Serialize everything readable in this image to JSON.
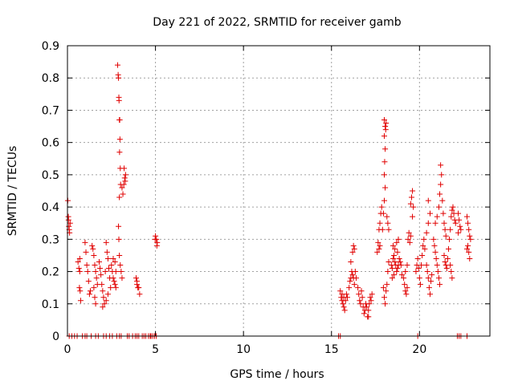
{
  "chart_data": {
    "type": "scatter",
    "title": "Day 221 of 2022, SRMTID for receiver gamb",
    "xlabel": "GPS time / hours",
    "ylabel": "SRMTID / TECUs",
    "xlim": [
      0,
      24
    ],
    "ylim": [
      0,
      0.9
    ],
    "xticks": [
      0,
      5,
      10,
      15,
      20
    ],
    "xtick_labels": [
      "0",
      "5",
      "10",
      "15",
      "20"
    ],
    "yticks": [
      0,
      0.1,
      0.2,
      0.3,
      0.4,
      0.5,
      0.6,
      0.7,
      0.8,
      0.9
    ],
    "ytick_labels": [
      "0",
      "0.1",
      "0.2",
      "0.3",
      "0.4",
      "0.5",
      "0.6",
      "0.7",
      "0.8",
      "0.9"
    ],
    "grid": true,
    "marker": "+",
    "color": "#e00000",
    "series": [
      {
        "name": "SRMTID",
        "points": [
          [
            0.02,
            0.42
          ],
          [
            0.05,
            0.37
          ],
          [
            0.08,
            0.34
          ],
          [
            0.1,
            0.33
          ],
          [
            0.12,
            0.32
          ],
          [
            0.06,
            0.36
          ],
          [
            0.15,
            0.35
          ],
          [
            0.6,
            0.23
          ],
          [
            0.65,
            0.21
          ],
          [
            0.7,
            0.2
          ],
          [
            0.68,
            0.15
          ],
          [
            0.72,
            0.14
          ],
          [
            0.75,
            0.11
          ],
          [
            0.7,
            0.24
          ],
          [
            1.0,
            0.29
          ],
          [
            1.05,
            0.26
          ],
          [
            1.1,
            0.22
          ],
          [
            1.15,
            0.2
          ],
          [
            1.2,
            0.17
          ],
          [
            1.25,
            0.13
          ],
          [
            1.3,
            0.14
          ],
          [
            1.4,
            0.28
          ],
          [
            1.45,
            0.27
          ],
          [
            1.5,
            0.25
          ],
          [
            1.55,
            0.22
          ],
          [
            1.6,
            0.2
          ],
          [
            1.65,
            0.18
          ],
          [
            1.5,
            0.15
          ],
          [
            1.55,
            0.12
          ],
          [
            1.6,
            0.1
          ],
          [
            1.7,
            0.16
          ],
          [
            1.8,
            0.23
          ],
          [
            1.85,
            0.21
          ],
          [
            1.9,
            0.19
          ],
          [
            1.95,
            0.16
          ],
          [
            2.0,
            0.14
          ],
          [
            2.05,
            0.12
          ],
          [
            2.1,
            0.1
          ],
          [
            2.0,
            0.09
          ],
          [
            2.15,
            0.2
          ],
          [
            2.2,
            0.29
          ],
          [
            2.25,
            0.26
          ],
          [
            2.3,
            0.24
          ],
          [
            2.35,
            0.21
          ],
          [
            2.4,
            0.18
          ],
          [
            2.45,
            0.15
          ],
          [
            2.2,
            0.11
          ],
          [
            2.3,
            0.13
          ],
          [
            2.5,
            0.22
          ],
          [
            2.55,
            0.2
          ],
          [
            2.6,
            0.18
          ],
          [
            2.65,
            0.17
          ],
          [
            2.7,
            0.16
          ],
          [
            2.75,
            0.15
          ],
          [
            2.6,
            0.24
          ],
          [
            2.7,
            0.23
          ],
          [
            2.75,
            0.2
          ],
          [
            2.85,
            0.84
          ],
          [
            2.88,
            0.81
          ],
          [
            2.9,
            0.8
          ],
          [
            2.92,
            0.74
          ],
          [
            2.93,
            0.73
          ],
          [
            2.95,
            0.67
          ],
          [
            2.97,
            0.67
          ],
          [
            2.98,
            0.61
          ],
          [
            2.96,
            0.57
          ],
          [
            3.0,
            0.52
          ],
          [
            3.02,
            0.47
          ],
          [
            2.95,
            0.43
          ],
          [
            2.9,
            0.34
          ],
          [
            2.92,
            0.3
          ],
          [
            2.95,
            0.25
          ],
          [
            3.0,
            0.22
          ],
          [
            3.05,
            0.2
          ],
          [
            3.1,
            0.18
          ],
          [
            3.15,
            0.44
          ],
          [
            3.2,
            0.47
          ],
          [
            3.25,
            0.49
          ],
          [
            3.3,
            0.5
          ],
          [
            3.22,
            0.52
          ],
          [
            3.28,
            0.48
          ],
          [
            3.1,
            0.46
          ],
          [
            3.9,
            0.18
          ],
          [
            3.95,
            0.17
          ],
          [
            4.0,
            0.15
          ],
          [
            4.05,
            0.15
          ],
          [
            4.1,
            0.13
          ],
          [
            3.95,
            0.16
          ],
          [
            5.0,
            0.31
          ],
          [
            5.05,
            0.3
          ],
          [
            5.1,
            0.29
          ],
          [
            5.08,
            0.28
          ],
          [
            4.98,
            0.3
          ],
          [
            15.5,
            0.14
          ],
          [
            15.55,
            0.12
          ],
          [
            15.6,
            0.11
          ],
          [
            15.65,
            0.1
          ],
          [
            15.7,
            0.09
          ],
          [
            15.75,
            0.08
          ],
          [
            15.8,
            0.11
          ],
          [
            15.85,
            0.13
          ],
          [
            15.9,
            0.12
          ],
          [
            15.6,
            0.13
          ],
          [
            15.7,
            0.12
          ],
          [
            16.0,
            0.15
          ],
          [
            16.05,
            0.17
          ],
          [
            16.1,
            0.18
          ],
          [
            16.15,
            0.2
          ],
          [
            16.2,
            0.19
          ],
          [
            16.25,
            0.18
          ],
          [
            16.3,
            0.16
          ],
          [
            16.1,
            0.23
          ],
          [
            16.2,
            0.26
          ],
          [
            16.25,
            0.28
          ],
          [
            16.3,
            0.27
          ],
          [
            16.35,
            0.2
          ],
          [
            16.4,
            0.18
          ],
          [
            16.5,
            0.15
          ],
          [
            16.55,
            0.13
          ],
          [
            16.6,
            0.11
          ],
          [
            16.65,
            0.1
          ],
          [
            16.7,
            0.14
          ],
          [
            16.75,
            0.12
          ],
          [
            16.8,
            0.09
          ],
          [
            16.85,
            0.07
          ],
          [
            16.9,
            0.08
          ],
          [
            16.95,
            0.1
          ],
          [
            17.0,
            0.09
          ],
          [
            17.05,
            0.06
          ],
          [
            17.1,
            0.08
          ],
          [
            17.15,
            0.1
          ],
          [
            17.2,
            0.12
          ],
          [
            17.25,
            0.11
          ],
          [
            17.3,
            0.13
          ],
          [
            17.1,
            0.06
          ],
          [
            17.6,
            0.26
          ],
          [
            17.65,
            0.29
          ],
          [
            17.7,
            0.33
          ],
          [
            17.75,
            0.35
          ],
          [
            17.8,
            0.38
          ],
          [
            17.85,
            0.4
          ],
          [
            17.7,
            0.27
          ],
          [
            17.75,
            0.28
          ],
          [
            17.9,
            0.33
          ],
          [
            17.95,
            0.38
          ],
          [
            18.0,
            0.42
          ],
          [
            18.05,
            0.46
          ],
          [
            18.0,
            0.5
          ],
          [
            18.02,
            0.54
          ],
          [
            18.05,
            0.58
          ],
          [
            18.0,
            0.62
          ],
          [
            18.05,
            0.65
          ],
          [
            18.1,
            0.66
          ],
          [
            18.0,
            0.67
          ],
          [
            18.08,
            0.64
          ],
          [
            17.95,
            0.15
          ],
          [
            18.0,
            0.12
          ],
          [
            18.05,
            0.1
          ],
          [
            18.1,
            0.14
          ],
          [
            18.15,
            0.16
          ],
          [
            18.2,
            0.2
          ],
          [
            18.25,
            0.23
          ],
          [
            18.2,
            0.35
          ],
          [
            18.25,
            0.33
          ],
          [
            18.15,
            0.37
          ],
          [
            18.4,
            0.22
          ],
          [
            18.45,
            0.21
          ],
          [
            18.5,
            0.24
          ],
          [
            18.55,
            0.25
          ],
          [
            18.6,
            0.23
          ],
          [
            18.65,
            0.22
          ],
          [
            18.7,
            0.2
          ],
          [
            18.75,
            0.21
          ],
          [
            18.8,
            0.22
          ],
          [
            18.85,
            0.24
          ],
          [
            18.9,
            0.23
          ],
          [
            18.95,
            0.22
          ],
          [
            19.0,
            0.19
          ],
          [
            18.5,
            0.28
          ],
          [
            18.6,
            0.27
          ],
          [
            18.7,
            0.29
          ],
          [
            18.8,
            0.3
          ],
          [
            18.45,
            0.18
          ],
          [
            18.55,
            0.19
          ],
          [
            18.75,
            0.26
          ],
          [
            19.1,
            0.18
          ],
          [
            19.15,
            0.16
          ],
          [
            19.2,
            0.14
          ],
          [
            19.25,
            0.13
          ],
          [
            19.3,
            0.15
          ],
          [
            19.2,
            0.2
          ],
          [
            19.3,
            0.22
          ],
          [
            19.35,
            0.3
          ],
          [
            19.4,
            0.32
          ],
          [
            19.45,
            0.29
          ],
          [
            19.5,
            0.31
          ],
          [
            19.5,
            0.41
          ],
          [
            19.55,
            0.43
          ],
          [
            19.6,
            0.45
          ],
          [
            19.65,
            0.4
          ],
          [
            19.6,
            0.37
          ],
          [
            19.8,
            0.2
          ],
          [
            19.85,
            0.22
          ],
          [
            19.9,
            0.24
          ],
          [
            19.95,
            0.21
          ],
          [
            20.0,
            0.18
          ],
          [
            20.05,
            0.16
          ],
          [
            20.1,
            0.22
          ],
          [
            20.15,
            0.25
          ],
          [
            20.2,
            0.28
          ],
          [
            20.25,
            0.3
          ],
          [
            20.3,
            0.27
          ],
          [
            20.4,
            0.22
          ],
          [
            20.45,
            0.2
          ],
          [
            20.5,
            0.18
          ],
          [
            20.55,
            0.15
          ],
          [
            20.6,
            0.13
          ],
          [
            20.65,
            0.17
          ],
          [
            20.7,
            0.19
          ],
          [
            20.4,
            0.32
          ],
          [
            20.5,
            0.35
          ],
          [
            20.6,
            0.38
          ],
          [
            20.5,
            0.42
          ],
          [
            20.8,
            0.3
          ],
          [
            20.85,
            0.28
          ],
          [
            20.9,
            0.26
          ],
          [
            20.95,
            0.24
          ],
          [
            21.0,
            0.22
          ],
          [
            21.05,
            0.2
          ],
          [
            21.1,
            0.18
          ],
          [
            21.15,
            0.16
          ],
          [
            20.9,
            0.35
          ],
          [
            21.0,
            0.37
          ],
          [
            21.1,
            0.4
          ],
          [
            21.15,
            0.44
          ],
          [
            21.2,
            0.47
          ],
          [
            21.25,
            0.5
          ],
          [
            21.2,
            0.53
          ],
          [
            21.3,
            0.42
          ],
          [
            21.35,
            0.38
          ],
          [
            21.4,
            0.35
          ],
          [
            21.45,
            0.33
          ],
          [
            21.5,
            0.31
          ],
          [
            21.4,
            0.25
          ],
          [
            21.45,
            0.23
          ],
          [
            21.5,
            0.22
          ],
          [
            21.55,
            0.21
          ],
          [
            21.6,
            0.24
          ],
          [
            21.65,
            0.27
          ],
          [
            21.7,
            0.3
          ],
          [
            21.75,
            0.33
          ],
          [
            21.8,
            0.37
          ],
          [
            21.85,
            0.39
          ],
          [
            21.9,
            0.4
          ],
          [
            21.95,
            0.38
          ],
          [
            22.0,
            0.36
          ],
          [
            22.05,
            0.35
          ],
          [
            21.8,
            0.2
          ],
          [
            21.85,
            0.18
          ],
          [
            21.75,
            0.22
          ],
          [
            22.2,
            0.38
          ],
          [
            22.25,
            0.36
          ],
          [
            22.3,
            0.34
          ],
          [
            22.35,
            0.33
          ],
          [
            22.2,
            0.32
          ],
          [
            22.7,
            0.37
          ],
          [
            22.75,
            0.35
          ],
          [
            22.8,
            0.33
          ],
          [
            22.85,
            0.31
          ],
          [
            22.9,
            0.3
          ],
          [
            22.75,
            0.28
          ],
          [
            22.8,
            0.26
          ],
          [
            22.85,
            0.24
          ],
          [
            22.7,
            0.27
          ],
          [
            0.1,
            0
          ],
          [
            0.25,
            0
          ],
          [
            0.4,
            0
          ],
          [
            0.55,
            0
          ],
          [
            0.85,
            0
          ],
          [
            1.0,
            0
          ],
          [
            1.1,
            0
          ],
          [
            1.35,
            0
          ],
          [
            1.6,
            0
          ],
          [
            1.75,
            0
          ],
          [
            2.05,
            0
          ],
          [
            2.2,
            0
          ],
          [
            2.4,
            0
          ],
          [
            2.55,
            0
          ],
          [
            2.8,
            0
          ],
          [
            2.95,
            0
          ],
          [
            3.05,
            0
          ],
          [
            3.4,
            0
          ],
          [
            3.5,
            0
          ],
          [
            3.7,
            0
          ],
          [
            3.85,
            0
          ],
          [
            3.95,
            0
          ],
          [
            4.05,
            0
          ],
          [
            4.25,
            0
          ],
          [
            4.35,
            0
          ],
          [
            4.45,
            0
          ],
          [
            4.6,
            0
          ],
          [
            4.7,
            0
          ],
          [
            4.75,
            0
          ],
          [
            4.85,
            0
          ],
          [
            4.95,
            0
          ],
          [
            5.05,
            0
          ],
          [
            15.4,
            0
          ],
          [
            15.5,
            0
          ],
          [
            19.9,
            0
          ],
          [
            22.15,
            0
          ],
          [
            22.25,
            0
          ],
          [
            22.35,
            0
          ],
          [
            22.7,
            0
          ]
        ]
      }
    ]
  }
}
